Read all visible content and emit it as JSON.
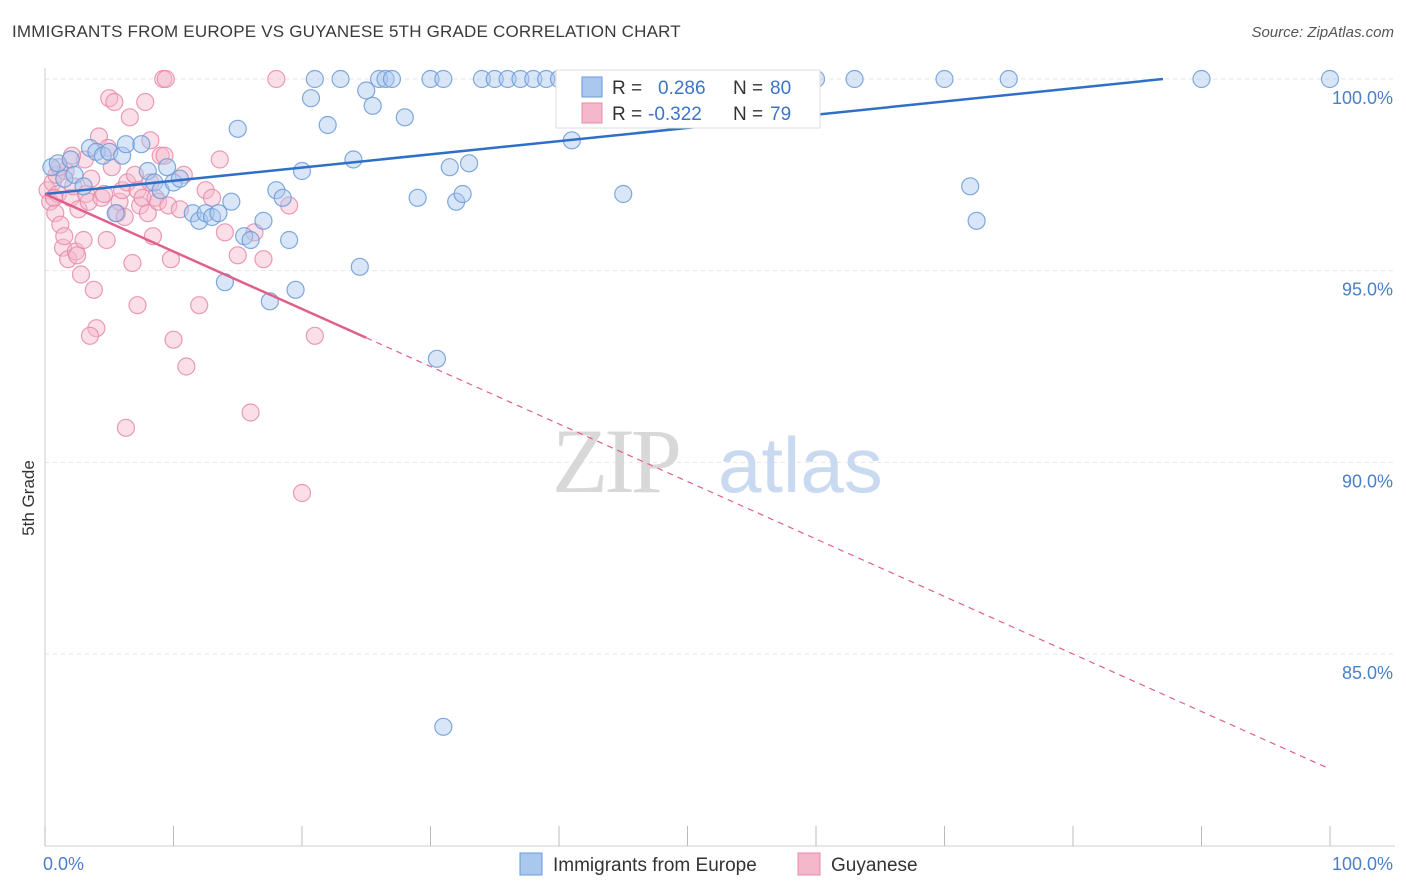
{
  "title": "IMMIGRANTS FROM EUROPE VS GUYANESE 5TH GRADE CORRELATION CHART",
  "source": "Source: ZipAtlas.com",
  "watermark": {
    "zip": "ZIP",
    "atlas": "atlas"
  },
  "colors": {
    "blue_fill": "#aac8ee",
    "blue_stroke": "#6a9ad8",
    "blue_line": "#2f6fc8",
    "pink_fill": "#f5b8cb",
    "pink_stroke": "#e88aa8",
    "pink_line": "#e0608a",
    "label_blue": "#4a7fc9",
    "grid": "#e6e6e6"
  },
  "legend": {
    "rows": [
      {
        "r_label": "R =",
        "r_value": "0.286",
        "n_label": "N =",
        "n_value": "80"
      },
      {
        "r_label": "R =",
        "r_value": "-0.322",
        "n_label": "N =",
        "n_value": "79"
      }
    ]
  },
  "bottom_legend": [
    "Immigrants from Europe",
    "Guyanese"
  ],
  "chart_data": {
    "type": "scatter",
    "xlabel": "",
    "ylabel": "5th Grade",
    "xlim": [
      0,
      100
    ],
    "ylim": [
      80.5,
      100.5
    ],
    "x_tick_labels": [
      "0.0%",
      "100.0%"
    ],
    "y_ticks": [
      85,
      90,
      95,
      100
    ],
    "y_tick_labels": [
      "85.0%",
      "90.0%",
      "95.0%",
      "100.0%"
    ],
    "grid": true,
    "legend_position": "top-center",
    "series": [
      {
        "name": "Immigrants from Europe",
        "r": 0.286,
        "n": 80,
        "trend": {
          "x0": 0,
          "y0": 97.0,
          "x1": 87,
          "y1": 100.0,
          "dashed_from": null
        },
        "points": [
          [
            0.5,
            97.7
          ],
          [
            1,
            97.8
          ],
          [
            1.5,
            97.4
          ],
          [
            2,
            97.9
          ],
          [
            2.3,
            97.5
          ],
          [
            3,
            97.2
          ],
          [
            3.5,
            98.2
          ],
          [
            4,
            98.1
          ],
          [
            4.5,
            98.0
          ],
          [
            5,
            98.1
          ],
          [
            5.5,
            96.5
          ],
          [
            6,
            98.0
          ],
          [
            6.3,
            98.3
          ],
          [
            7.5,
            98.3
          ],
          [
            8,
            97.6
          ],
          [
            8.5,
            97.3
          ],
          [
            9,
            97.1
          ],
          [
            9.5,
            97.7
          ],
          [
            10,
            97.3
          ],
          [
            10.5,
            97.4
          ],
          [
            11.5,
            96.5
          ],
          [
            12,
            96.3
          ],
          [
            12.5,
            96.5
          ],
          [
            13,
            96.4
          ],
          [
            13.5,
            96.5
          ],
          [
            14,
            94.7
          ],
          [
            14.5,
            96.8
          ],
          [
            15,
            98.7
          ],
          [
            15.5,
            95.9
          ],
          [
            16,
            95.8
          ],
          [
            17,
            96.3
          ],
          [
            17.5,
            94.2
          ],
          [
            18,
            97.1
          ],
          [
            18.5,
            96.9
          ],
          [
            19,
            95.8
          ],
          [
            19.5,
            94.5
          ],
          [
            20,
            97.6
          ],
          [
            21,
            100.0
          ],
          [
            20.7,
            99.5
          ],
          [
            22,
            98.8
          ],
          [
            23,
            100.0
          ],
          [
            24,
            97.9
          ],
          [
            24.5,
            95.1
          ],
          [
            25,
            99.7
          ],
          [
            25.5,
            99.3
          ],
          [
            26,
            100.0
          ],
          [
            26.5,
            100.0
          ],
          [
            27,
            100.0
          ],
          [
            28,
            99.0
          ],
          [
            29,
            96.9
          ],
          [
            30,
            100.0
          ],
          [
            31,
            100.0
          ],
          [
            31.5,
            97.7
          ],
          [
            32,
            96.8
          ],
          [
            32.5,
            97.0
          ],
          [
            33,
            97.8
          ],
          [
            34,
            100.0
          ],
          [
            35,
            100.0
          ],
          [
            36,
            100.0
          ],
          [
            37,
            100.0
          ],
          [
            38,
            100.0
          ],
          [
            39,
            100.0
          ],
          [
            40,
            100.0
          ],
          [
            41,
            98.4
          ],
          [
            42,
            100.0
          ],
          [
            43,
            100.0
          ],
          [
            45,
            97.0
          ],
          [
            46,
            100.0
          ],
          [
            47,
            100.0
          ],
          [
            50,
            100.0
          ],
          [
            60,
            100.0
          ],
          [
            63,
            100.0
          ],
          [
            70,
            100.0
          ],
          [
            72,
            97.2
          ],
          [
            72.5,
            96.3
          ],
          [
            75,
            100.0
          ],
          [
            90,
            100.0
          ],
          [
            100,
            100.0
          ],
          [
            30.5,
            92.7
          ],
          [
            31,
            83.1
          ]
        ]
      },
      {
        "name": "Guyanese",
        "r": -0.322,
        "n": 79,
        "trend": {
          "x0": 0,
          "y0": 97.0,
          "x1": 100,
          "y1": 82.0,
          "dashed_from": 25
        },
        "points": [
          [
            0.2,
            97.1
          ],
          [
            0.4,
            96.8
          ],
          [
            0.6,
            97.3
          ],
          [
            0.8,
            96.5
          ],
          [
            1,
            97.0
          ],
          [
            1.2,
            96.2
          ],
          [
            1.4,
            95.6
          ],
          [
            1.6,
            97.6
          ],
          [
            1.8,
            95.3
          ],
          [
            2,
            96.9
          ],
          [
            2.2,
            97.2
          ],
          [
            2.4,
            95.5
          ],
          [
            2.6,
            96.6
          ],
          [
            2.8,
            94.9
          ],
          [
            3,
            95.8
          ],
          [
            3.2,
            97.0
          ],
          [
            3.4,
            96.8
          ],
          [
            3.6,
            97.4
          ],
          [
            3.8,
            94.5
          ],
          [
            4,
            93.5
          ],
          [
            4.2,
            98.5
          ],
          [
            4.4,
            96.9
          ],
          [
            4.6,
            97.0
          ],
          [
            4.8,
            95.8
          ],
          [
            5,
            99.5
          ],
          [
            5.2,
            97.7
          ],
          [
            5.4,
            99.4
          ],
          [
            5.6,
            96.5
          ],
          [
            5.8,
            96.8
          ],
          [
            6,
            97.1
          ],
          [
            6.2,
            96.4
          ],
          [
            6.4,
            97.3
          ],
          [
            6.6,
            99.0
          ],
          [
            6.8,
            95.2
          ],
          [
            7,
            97.5
          ],
          [
            7.2,
            97.1
          ],
          [
            7.4,
            96.7
          ],
          [
            7.6,
            96.9
          ],
          [
            7.8,
            99.4
          ],
          [
            8,
            96.5
          ],
          [
            8.2,
            98.4
          ],
          [
            8.4,
            95.9
          ],
          [
            8.6,
            96.9
          ],
          [
            8.8,
            96.8
          ],
          [
            9,
            98.0
          ],
          [
            9.2,
            100.0
          ],
          [
            9.4,
            100.0
          ],
          [
            9.6,
            96.7
          ],
          [
            9.8,
            95.3
          ],
          [
            10,
            93.2
          ],
          [
            10.5,
            96.6
          ],
          [
            11,
            92.5
          ],
          [
            12,
            94.1
          ],
          [
            12.5,
            97.1
          ],
          [
            13,
            96.9
          ],
          [
            14,
            96.0
          ],
          [
            15,
            95.4
          ],
          [
            16,
            91.3
          ],
          [
            17,
            95.3
          ],
          [
            18,
            100.0
          ],
          [
            19,
            96.7
          ],
          [
            20,
            89.2
          ],
          [
            21,
            93.3
          ],
          [
            6.3,
            90.9
          ],
          [
            3.5,
            93.3
          ],
          [
            2.5,
            95.4
          ],
          [
            1.5,
            95.9
          ],
          [
            0.9,
            97.5
          ],
          [
            0.7,
            96.9
          ],
          [
            1.1,
            97.7
          ],
          [
            7.2,
            94.1
          ],
          [
            8.2,
            97.3
          ],
          [
            9.3,
            98.0
          ],
          [
            10.8,
            97.5
          ],
          [
            4.9,
            98.2
          ],
          [
            3.1,
            97.9
          ],
          [
            2.1,
            98.0
          ],
          [
            13.6,
            97.9
          ],
          [
            16.3,
            96.0
          ]
        ]
      }
    ]
  }
}
